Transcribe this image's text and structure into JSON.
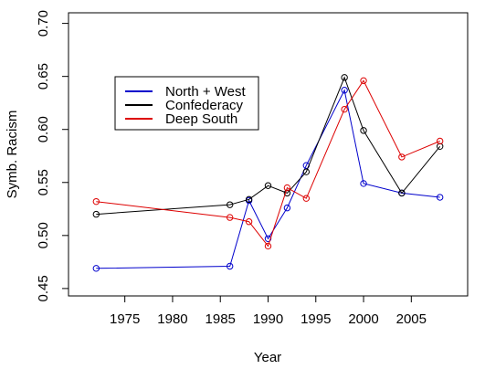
{
  "chart_data": {
    "type": "line",
    "xlabel": "Year",
    "ylabel": "Symb. Racism",
    "xlim": [
      1969.1,
      2010.9
    ],
    "ylim": [
      0.443,
      0.71
    ],
    "xticks": [
      1975,
      1980,
      1985,
      1990,
      1995,
      2000,
      2005
    ],
    "yticks": [
      0.45,
      0.5,
      0.55,
      0.6,
      0.65,
      0.7
    ],
    "ytick_labels": [
      "0.45",
      "0.50",
      "0.55",
      "0.60",
      "0.65",
      "0.70"
    ],
    "grid": false,
    "legend_position": "upper-left",
    "series": [
      {
        "name": "North + West",
        "color": "#0000cc",
        "x": [
          1972,
          1986,
          1988,
          1990,
          1992,
          1994,
          1998,
          2000,
          2004,
          2008
        ],
        "y": [
          0.469,
          0.471,
          0.533,
          0.497,
          0.526,
          0.566,
          0.637,
          0.549,
          0.54,
          0.536
        ]
      },
      {
        "name": "Confederacy",
        "color": "#000000",
        "x": [
          1972,
          1986,
          1988,
          1990,
          1992,
          1994,
          1998,
          2000,
          2004,
          2008
        ],
        "y": [
          0.52,
          0.529,
          0.534,
          0.547,
          0.54,
          0.56,
          0.649,
          0.599,
          0.54,
          0.584
        ]
      },
      {
        "name": "Deep South",
        "color": "#dd0000",
        "x": [
          1972,
          1986,
          1988,
          1990,
          1992,
          1994,
          1998,
          2000,
          2004,
          2008
        ],
        "y": [
          0.532,
          0.517,
          0.513,
          0.49,
          0.545,
          0.535,
          0.619,
          0.646,
          0.574,
          0.589
        ]
      }
    ]
  }
}
